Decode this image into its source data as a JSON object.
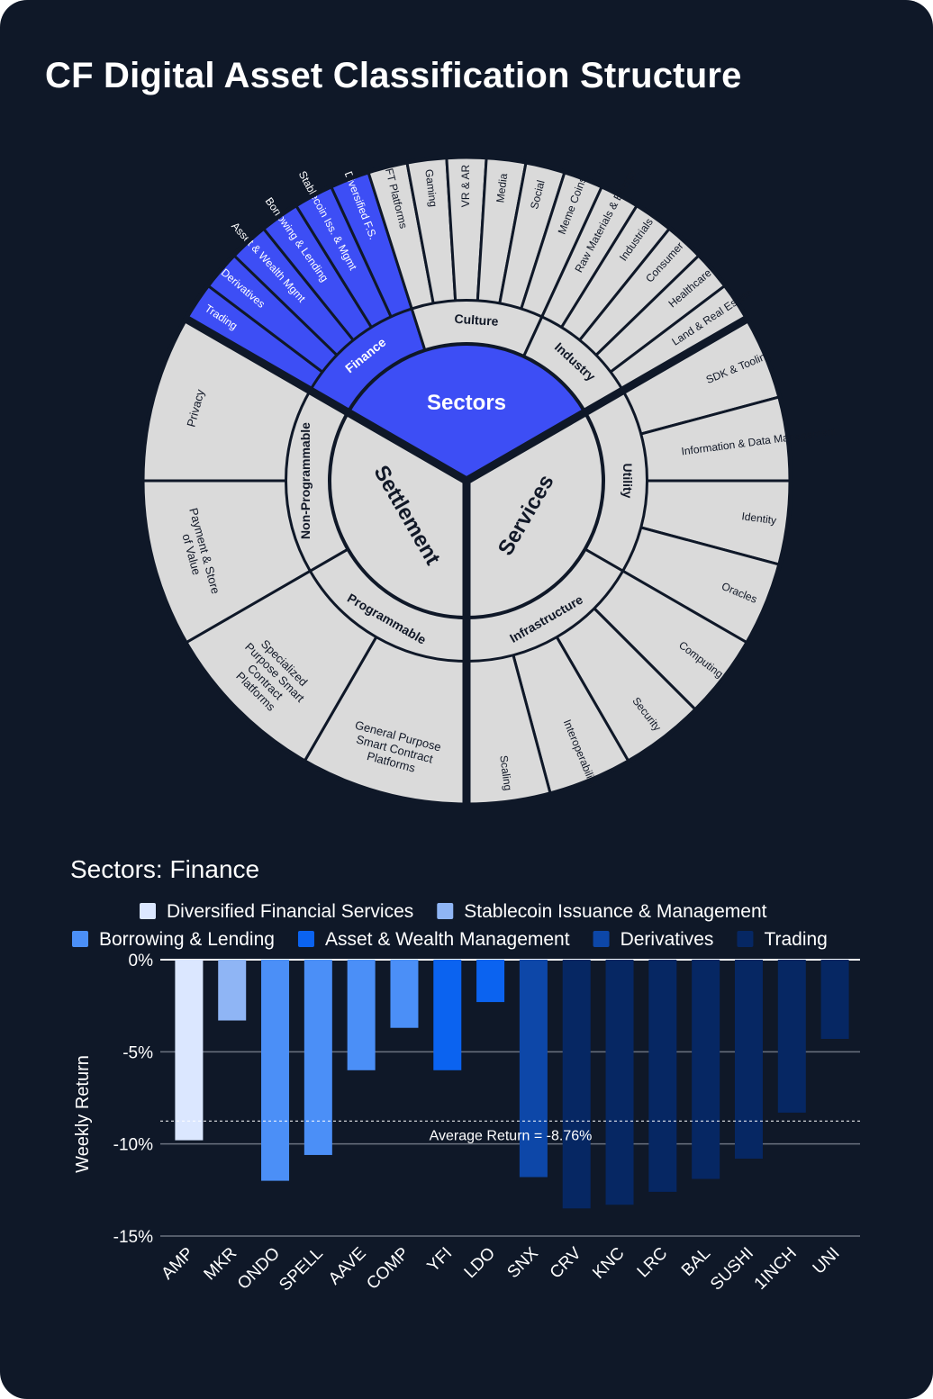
{
  "title": "CF Digital Asset Classification Structure",
  "colors": {
    "background": "#0f1828",
    "ring_fill": "#dadada",
    "finance_highlight": "#3d4ef5",
    "dark_text": "#111827",
    "grid": "#6b7280"
  },
  "wheel": {
    "center_label": "Sectors",
    "sectors": [
      {
        "label": "Settlement",
        "categories": [
          {
            "label": "Programmable",
            "subsectors": [
              "General Purpose Smart Contract Platforms",
              "Specialized Purpose Smart Contract Platforms"
            ]
          },
          {
            "label": "Non-Programmable",
            "subsectors": [
              "Payment & Store of Value",
              "Privacy"
            ]
          }
        ]
      },
      {
        "label": "Services",
        "categories": [
          {
            "label": "Utility",
            "subsectors": [
              "SDK & Tooling",
              "Information & Data Management",
              "Identity",
              "Oracles"
            ]
          },
          {
            "label": "Infrastructure",
            "subsectors": [
              "Computing",
              "Security",
              "Interoperability",
              "Scaling"
            ]
          }
        ]
      },
      {
        "label": "Sectors",
        "categories": [
          {
            "label": "Finance",
            "highlighted": true,
            "subsectors": [
              "Trading",
              "Derivatives",
              "Asset & Wealth Mgmt",
              "Borrowing & Lending",
              "Stablecoin Iss. & Mgmt",
              "Diversified F.S."
            ]
          },
          {
            "label": "Culture",
            "subsectors": [
              "NFT Platforms",
              "Gaming",
              "VR & AR",
              "Media",
              "Social",
              "Meme Coins"
            ]
          },
          {
            "label": "Industry",
            "subsectors": [
              "Raw Materials & Energy",
              "Industrials",
              "Consumer",
              "Healthcare",
              "Land & Real Estate"
            ]
          }
        ]
      }
    ]
  },
  "chart_data": {
    "type": "bar",
    "title": "Sectors: Finance",
    "xlabel": "",
    "ylabel": "Weekly Return",
    "ylim": [
      -15,
      0
    ],
    "yticks": [
      "0%",
      "-5%",
      "-10%",
      "-15%"
    ],
    "grid": true,
    "legend_position": "top",
    "legend": [
      {
        "name": "Diversified Financial Services",
        "color": "#dbe7ff"
      },
      {
        "name": "Stablecoin Issuance & Management",
        "color": "#8fb5f5"
      },
      {
        "name": "Borrowing & Lending",
        "color": "#4b8ff7"
      },
      {
        "name": "Asset & Wealth Management",
        "color": "#0b63f0"
      },
      {
        "name": "Derivatives",
        "color": "#0d47a8"
      },
      {
        "name": "Trading",
        "color": "#062763"
      }
    ],
    "categories": [
      "AMP",
      "MKR",
      "ONDO",
      "SPELL",
      "AAVE",
      "COMP",
      "YFI",
      "LDO",
      "SNX",
      "CRV",
      "KNC",
      "LRC",
      "BAL",
      "SUSHI",
      "1INCH",
      "UNI"
    ],
    "values": [
      -9.8,
      -3.3,
      -12.0,
      -10.6,
      -6.0,
      -3.7,
      -6.0,
      -2.3,
      -11.8,
      -13.5,
      -13.3,
      -12.6,
      -11.9,
      -10.8,
      -8.3,
      -4.3
    ],
    "groups": [
      0,
      1,
      2,
      2,
      2,
      2,
      3,
      3,
      4,
      5,
      5,
      5,
      5,
      5,
      5,
      5
    ],
    "average": {
      "value": -8.76,
      "label": "Average Return = -8.76%"
    }
  }
}
